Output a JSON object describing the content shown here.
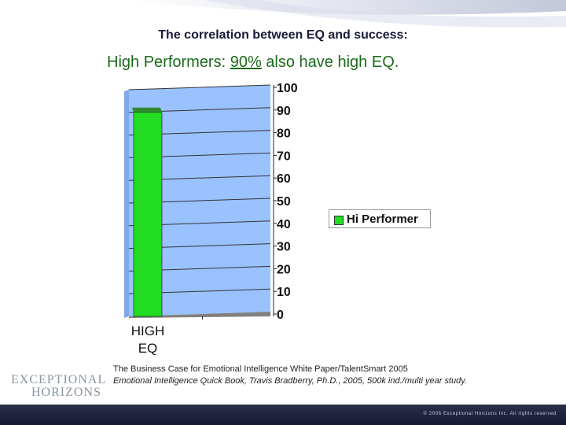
{
  "slide": {
    "subtitle": "The correlation between EQ and success:",
    "headline_pre": "High Performers:  ",
    "headline_pct": "90%",
    "headline_post": " also have high EQ.",
    "references": [
      "The Business Case for Emotional Intelligence White Paper/TalentSmart 2005",
      "Emotional Intelligence Quick Book, Travis Bradberry, Ph.D., 2005, 500k ind./multi year study."
    ],
    "logo_line1": "EXCEPTIONAL",
    "logo_line2": "HORIZONS",
    "copyright": "© 2006 Exceptional Horizons Inc. All rights reserved"
  },
  "colors": {
    "plot_background": "#99c2ff",
    "bar": "#22dd22",
    "bar_top": "#2e8b2e",
    "floor": "#808080",
    "headline": "#1a6b1a"
  },
  "chart_data": {
    "type": "bar",
    "categories": [
      "HIGH\nEQ"
    ],
    "series": [
      {
        "name": "Hi Performer",
        "values": [
          90
        ]
      }
    ],
    "ylim": [
      0,
      100
    ],
    "yticks": [
      0,
      10,
      20,
      30,
      40,
      50,
      60,
      70,
      80,
      90,
      100
    ],
    "grid": true,
    "legend": "right"
  }
}
